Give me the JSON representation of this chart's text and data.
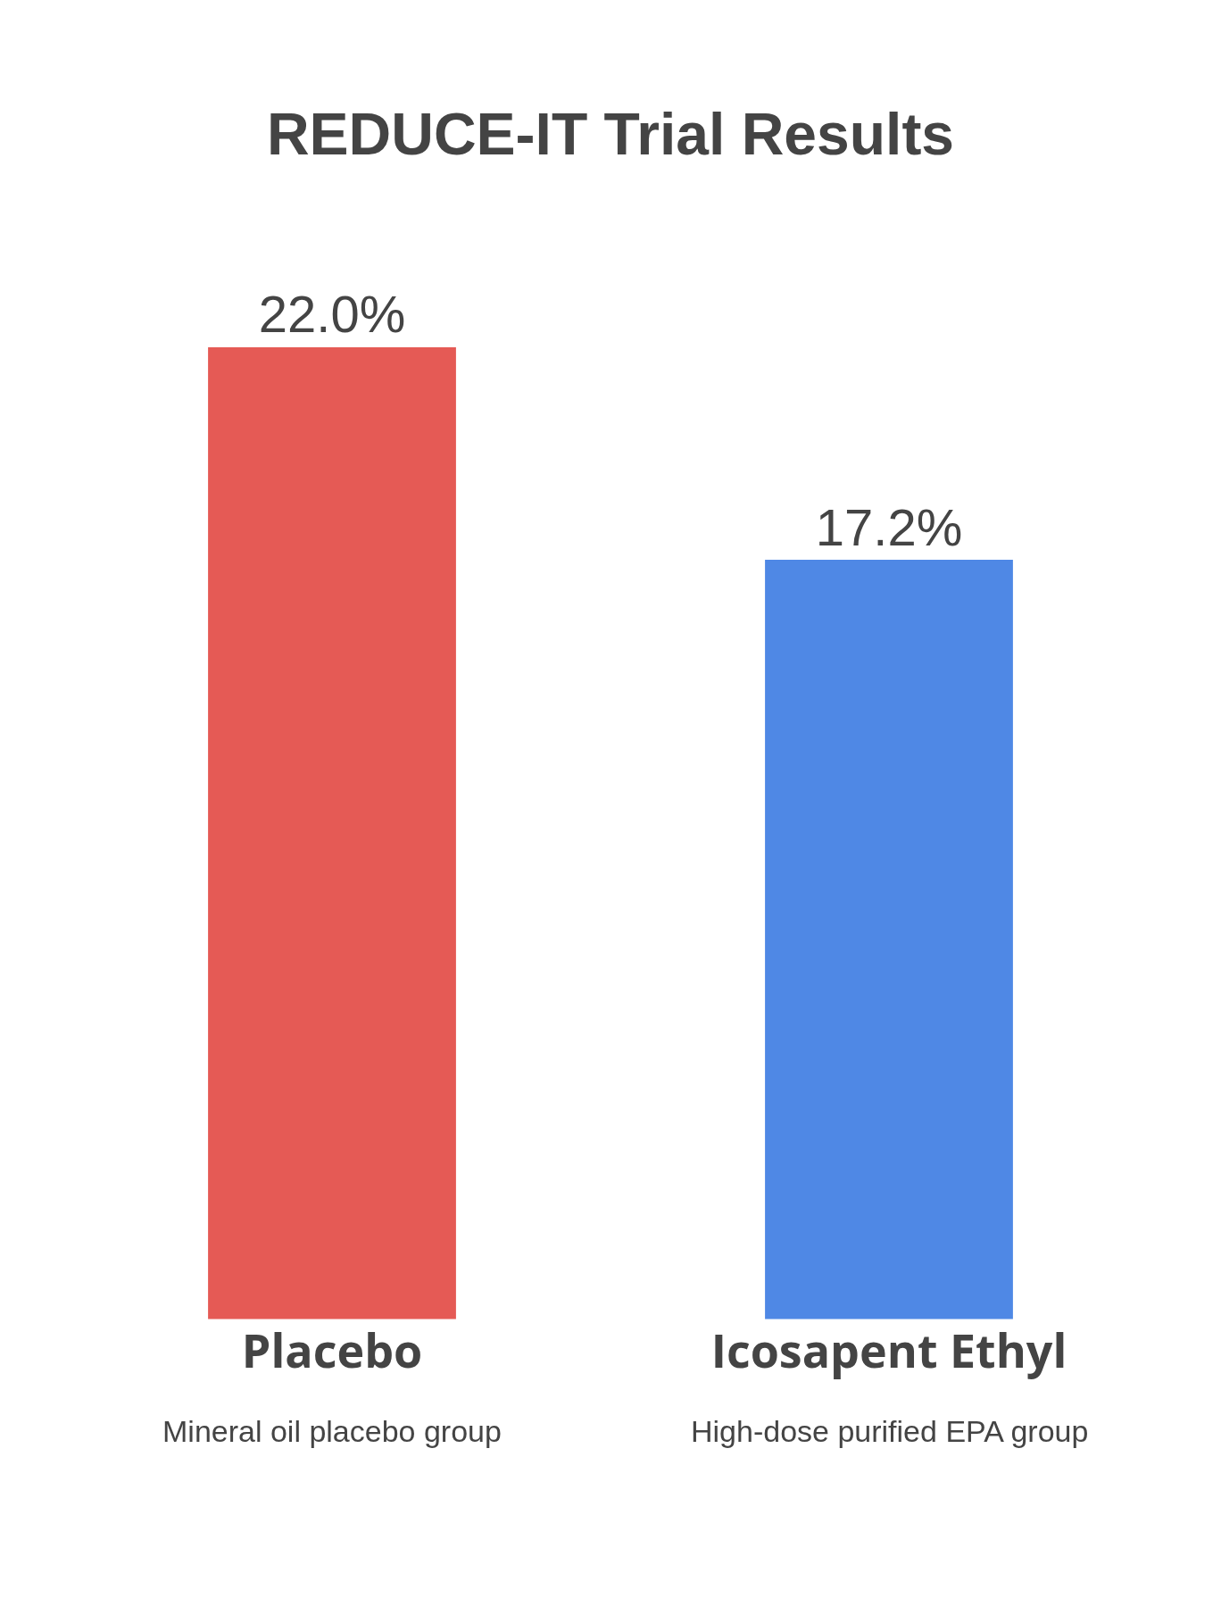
{
  "chart_data": {
    "type": "bar",
    "title": "REDUCE-IT Trial Results",
    "categories": [
      "Placebo",
      "Icosapent Ethyl"
    ],
    "values": [
      22.0,
      17.2
    ],
    "value_labels": [
      "22.0%",
      "17.2%"
    ],
    "colors": [
      "#e55a55",
      "#4f88e5"
    ],
    "annotations": [
      "Mineral oil placebo group",
      "High-dose purified EPA group"
    ],
    "grid": false,
    "legend": false
  }
}
